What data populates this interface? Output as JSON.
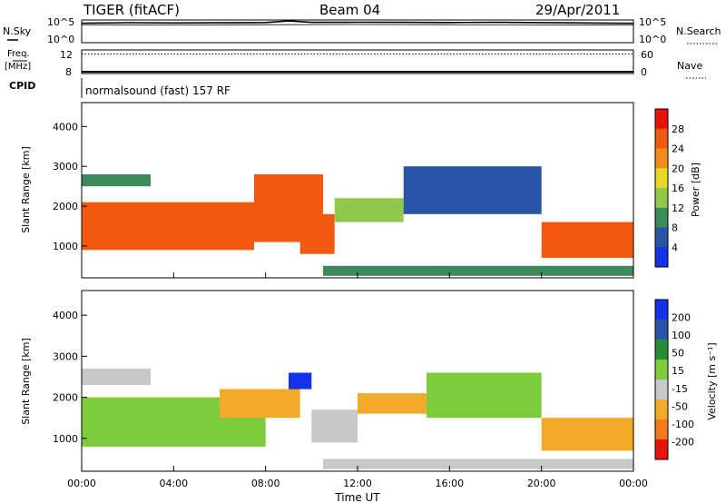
{
  "header": {
    "radar": "TIGER (fitACF)",
    "beam": "Beam 04",
    "date": "29/Apr/2011"
  },
  "noise_panel": {
    "left_label": "N.Sky",
    "right_label": "N.Search",
    "left_ticks": [
      "10^5",
      "10^0"
    ],
    "right_ticks": [
      "10^5",
      "10^0"
    ]
  },
  "freq_panel": {
    "left_label_line1": "Freq.",
    "left_label_line2": "[MHz]",
    "left_ticks": [
      "12",
      "8"
    ],
    "right_label": "Nave",
    "right_ticks": [
      "60",
      "0"
    ]
  },
  "cpid": {
    "label": "CPID",
    "value": "normalsound (fast) 157 RF"
  },
  "power_panel": {
    "ylabel": "Slant Range [km]",
    "yticks": [
      "4000",
      "3000",
      "2000",
      "1000"
    ],
    "colorbar_label": "Power [dB]",
    "colorbar_ticks": [
      "28",
      "24",
      "20",
      "16",
      "12",
      "8",
      "4"
    ],
    "colors": [
      "#1432e6",
      "#2a55a6",
      "#3d8a5a",
      "#8fc84a",
      "#e8d62a",
      "#f28c1a",
      "#f25a14",
      "#e8140a"
    ]
  },
  "velocity_panel": {
    "ylabel": "Slant Range [km]",
    "yticks": [
      "4000",
      "3000",
      "2000",
      "1000"
    ],
    "colorbar_label": "Velocity [m s⁻¹]",
    "colorbar_ticks": [
      "200",
      "100",
      "50",
      "15",
      "-15",
      "-50",
      "-100",
      "-200"
    ],
    "colors": [
      "#1432e6",
      "#2a55a6",
      "#2a8a3a",
      "#7ccc3c",
      "#c8c8c8",
      "#f2aa2a",
      "#f27a1a",
      "#e8140a"
    ]
  },
  "xaxis": {
    "label": "Time UT",
    "ticks": [
      "00:00",
      "04:00",
      "08:00",
      "12:00",
      "16:00",
      "20:00",
      "00:00"
    ]
  },
  "chart_data": [
    {
      "type": "line",
      "panel": "noise",
      "x_range_hours": [
        0,
        24
      ],
      "y_scale": "log",
      "ylim": [
        1,
        100000
      ],
      "series": [
        {
          "x": [
            0,
            2,
            4,
            6,
            8,
            9,
            10,
            12,
            14,
            16,
            18,
            20,
            22,
            24
          ],
          "values": [
            20000,
            25000,
            22000,
            24000,
            28000,
            60000,
            30000,
            32000,
            30000,
            28000,
            30000,
            26000,
            22000,
            18000
          ]
        },
        {
          "x": [
            0,
            4,
            8,
            12,
            16,
            20,
            24
          ],
          "values": [
            9000,
            8000,
            9000,
            10000,
            9000,
            8500,
            8000
          ]
        }
      ]
    },
    {
      "type": "line",
      "panel": "frequency",
      "x_range_hours": [
        0,
        24
      ],
      "ylim": [
        8,
        12
      ],
      "series": [
        {
          "x": [
            0,
            24
          ],
          "values": [
            11.3,
            11.3
          ]
        },
        {
          "x": [
            0,
            24
          ],
          "values": [
            8.3,
            8.3
          ]
        }
      ]
    },
    {
      "type": "heatmap",
      "panel": "power",
      "x_range_hours": [
        0,
        24
      ],
      "ylim": [
        200,
        4600
      ],
      "zlim": [
        0,
        30
      ],
      "regions": [
        {
          "t0": 0,
          "t1": 7.5,
          "r0": 900,
          "r1": 2100,
          "value": 26
        },
        {
          "t0": 0,
          "t1": 3,
          "r0": 2500,
          "r1": 2800,
          "value": 8
        },
        {
          "t0": 7.5,
          "t1": 10.5,
          "r0": 1100,
          "r1": 2800,
          "value": 24
        },
        {
          "t0": 9.5,
          "t1": 11,
          "r0": 800,
          "r1": 1800,
          "value": 26
        },
        {
          "t0": 11,
          "t1": 14,
          "r0": 1600,
          "r1": 2200,
          "value": 12
        },
        {
          "t0": 14,
          "t1": 20,
          "r0": 1800,
          "r1": 3000,
          "value": 6
        },
        {
          "t0": 20,
          "t1": 24,
          "r0": 700,
          "r1": 1600,
          "value": 26
        },
        {
          "t0": 10.5,
          "t1": 24,
          "r0": 250,
          "r1": 500,
          "value": 8
        }
      ]
    },
    {
      "type": "heatmap",
      "panel": "velocity",
      "x_range_hours": [
        0,
        24
      ],
      "ylim": [
        200,
        4600
      ],
      "zlim": [
        -250,
        250
      ],
      "regions": [
        {
          "t0": 0,
          "t1": 8,
          "r0": 800,
          "r1": 2000,
          "value": 0
        },
        {
          "t0": 0,
          "t1": 3,
          "r0": 2300,
          "r1": 2700,
          "value": -60
        },
        {
          "t0": 6,
          "t1": 9.5,
          "r0": 1500,
          "r1": 2200,
          "value": -70
        },
        {
          "t0": 9,
          "t1": 10,
          "r0": 2200,
          "r1": 2600,
          "value": 220
        },
        {
          "t0": 10,
          "t1": 12,
          "r0": 900,
          "r1": 1700,
          "value": -40
        },
        {
          "t0": 12,
          "t1": 15,
          "r0": 1600,
          "r1": 2100,
          "value": -120
        },
        {
          "t0": 15,
          "t1": 20,
          "r0": 1500,
          "r1": 2600,
          "value": 0
        },
        {
          "t0": 20,
          "t1": 24,
          "r0": 700,
          "r1": 1500,
          "value": -80
        },
        {
          "t0": 10.5,
          "t1": 24,
          "r0": 250,
          "r1": 500,
          "value": -40
        }
      ]
    }
  ]
}
